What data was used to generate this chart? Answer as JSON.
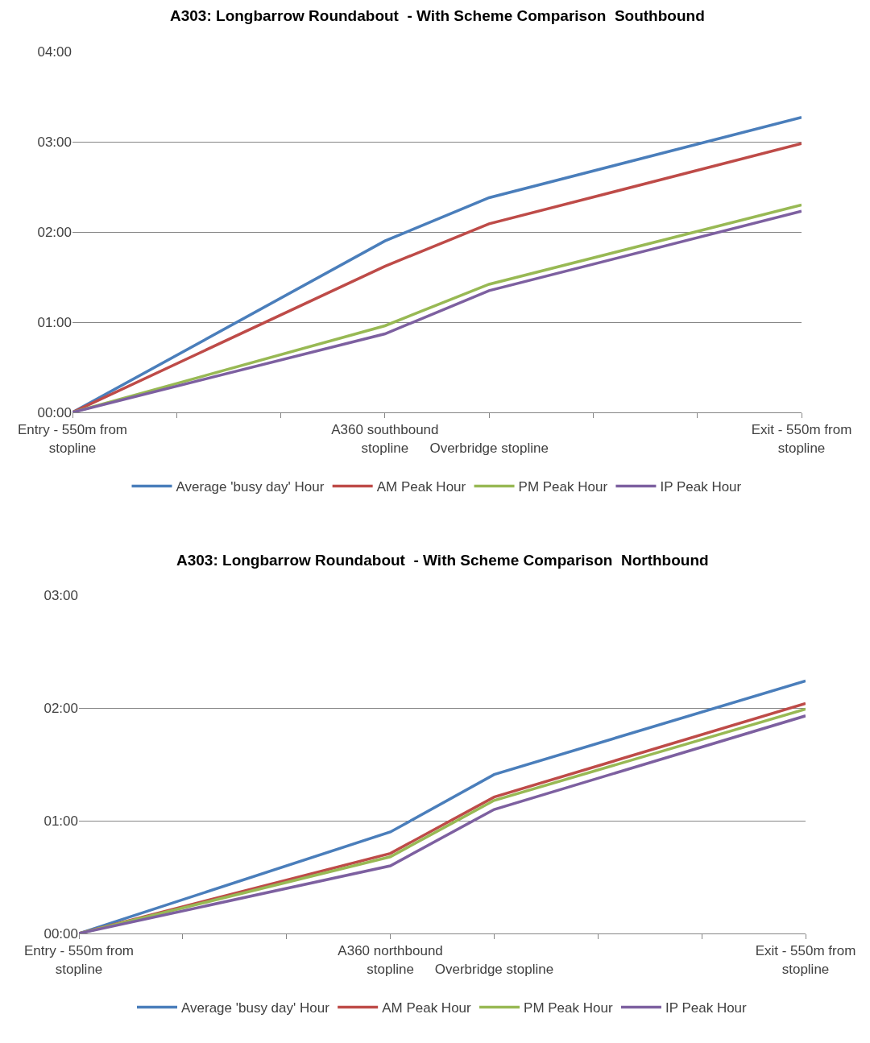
{
  "chart_data": [
    {
      "type": "line",
      "title": "A303: Longbarrow Roundabout  - With Scheme Comparison  Southbound",
      "categories": [
        "Entry - 550m from stopline",
        null,
        null,
        "A360 southbound stopline",
        "Overbridge stopline",
        null,
        null,
        "Exit - 550m from stopline"
      ],
      "series": [
        {
          "name": "Average 'busy day' Hour",
          "color": "#4a7ebb",
          "values": [
            0,
            null,
            null,
            1.9,
            2.38,
            null,
            null,
            3.27
          ]
        },
        {
          "name": "AM Peak Hour",
          "color": "#be4b48",
          "values": [
            0,
            null,
            null,
            1.62,
            2.09,
            null,
            null,
            2.98
          ]
        },
        {
          "name": "PM Peak Hour",
          "color": "#98b954",
          "values": [
            0,
            null,
            null,
            0.96,
            1.42,
            null,
            null,
            2.3
          ]
        },
        {
          "name": "IP Peak Hour",
          "color": "#7d60a0",
          "values": [
            0,
            null,
            null,
            0.87,
            1.35,
            null,
            null,
            2.23
          ]
        }
      ],
      "ylim": [
        0,
        4
      ],
      "yticks": [
        {
          "value": 0,
          "label": "00:00"
        },
        {
          "value": 1,
          "label": "01:00"
        },
        {
          "value": 2,
          "label": "02:00"
        },
        {
          "value": 3,
          "label": "03:00"
        },
        {
          "value": 4,
          "label": "04:00"
        }
      ],
      "grid": "y",
      "legend": "bottom",
      "marker": "none",
      "line_style": "solid"
    },
    {
      "type": "line",
      "title": "A303: Longbarrow Roundabout  - With Scheme Comparison  Northbound",
      "categories": [
        "Entry - 550m from stopline",
        null,
        null,
        "A360 northbound stopline",
        "Overbridge stopline",
        null,
        null,
        "Exit - 550m from stopline"
      ],
      "series": [
        {
          "name": "Average 'busy day' Hour",
          "color": "#4a7ebb",
          "values": [
            0,
            null,
            null,
            0.9,
            1.41,
            null,
            null,
            2.24
          ]
        },
        {
          "name": "AM Peak Hour",
          "color": "#be4b48",
          "values": [
            0,
            null,
            null,
            0.71,
            1.21,
            null,
            null,
            2.04
          ]
        },
        {
          "name": "PM Peak Hour",
          "color": "#98b954",
          "values": [
            0,
            null,
            null,
            0.68,
            1.18,
            null,
            null,
            1.99
          ]
        },
        {
          "name": "IP Peak Hour",
          "color": "#7d60a0",
          "values": [
            0,
            null,
            null,
            0.6,
            1.1,
            null,
            null,
            1.93
          ]
        }
      ],
      "ylim": [
        0,
        3
      ],
      "yticks": [
        {
          "value": 0,
          "label": "00:00"
        },
        {
          "value": 1,
          "label": "01:00"
        },
        {
          "value": 2,
          "label": "02:00"
        },
        {
          "value": 3,
          "label": "03:00"
        }
      ],
      "grid": "y",
      "legend": "bottom",
      "marker": "none",
      "line_style": "solid"
    }
  ]
}
